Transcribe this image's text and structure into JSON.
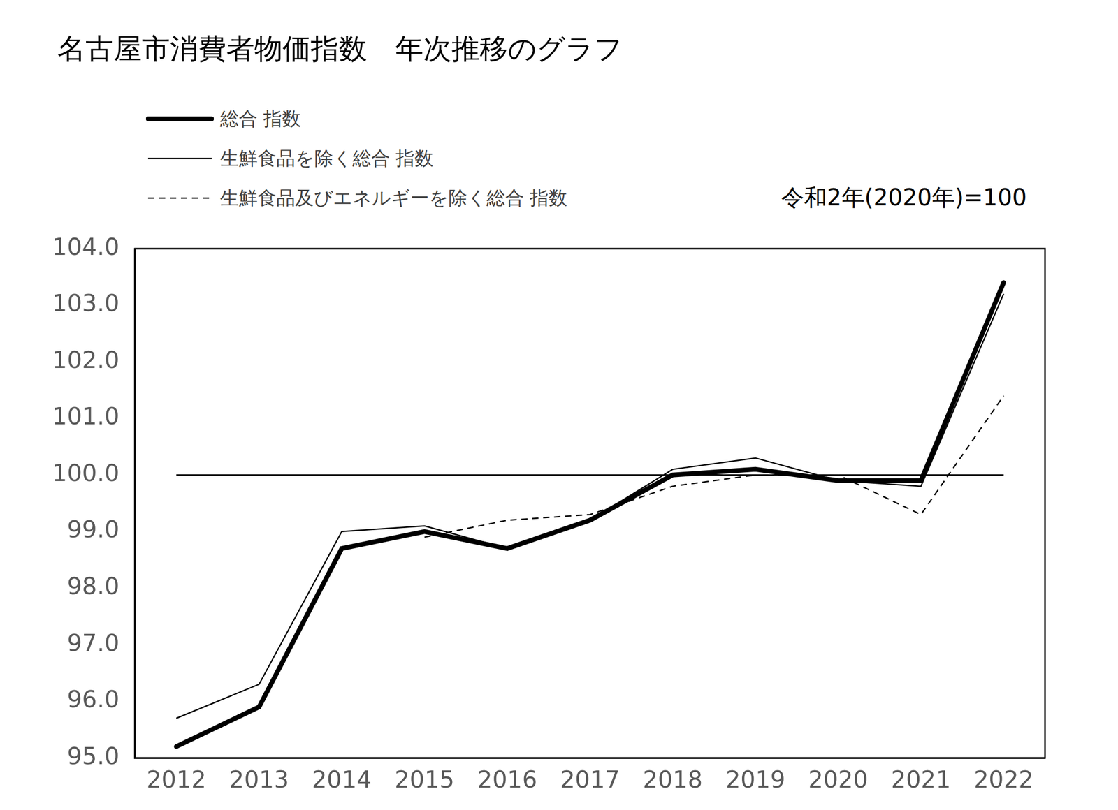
{
  "chart_data": {
    "type": "line",
    "title": "名古屋市消費者物価指数　年次推移のグラフ",
    "annotations": [
      "令和2年(2020年)=100"
    ],
    "categories": [
      "2012",
      "2013",
      "2014",
      "2015",
      "2016",
      "2017",
      "2018",
      "2019",
      "2020",
      "2021",
      "2022"
    ],
    "series": [
      {
        "name": "総合 指数",
        "color": "#000000",
        "line_style": "solid",
        "values": [
          95.2,
          95.9,
          98.7,
          99.0,
          98.7,
          99.2,
          100.0,
          100.1,
          99.9,
          99.9,
          103.4
        ]
      },
      {
        "name": "生鮮食品を除く総合 指数",
        "color": "#000000",
        "line_style": "solid",
        "values": [
          95.7,
          96.3,
          99.0,
          99.1,
          98.7,
          99.2,
          100.1,
          100.3,
          99.9,
          99.8,
          103.2
        ]
      },
      {
        "name": "生鮮食品及びエネルギーを除く総合 指数",
        "color": "#000000",
        "line_style": "dashed",
        "values": [
          null,
          null,
          null,
          98.9,
          99.2,
          99.3,
          99.8,
          100.0,
          100.0,
          99.3,
          101.4
        ]
      },
      {
        "color": "#000000",
        "line_style": "solid",
        "values": [
          100,
          100,
          100,
          100,
          100,
          100,
          100,
          100,
          100,
          100,
          100
        ]
      }
    ],
    "ylim": [
      95,
      104
    ],
    "yticks": [
      {
        "value": 95,
        "label": "95.0"
      },
      {
        "value": 96,
        "label": "96.0"
      },
      {
        "value": 97,
        "label": "97.0"
      },
      {
        "value": 98,
        "label": "98.0"
      },
      {
        "value": 99,
        "label": "99.0"
      },
      {
        "value": 100,
        "label": "100.0"
      },
      {
        "value": 101,
        "label": "101.0"
      },
      {
        "value": 102,
        "label": "102.0"
      },
      {
        "value": 103,
        "label": "103.0"
      },
      {
        "value": 104,
        "label": "104.0"
      }
    ],
    "grid": false,
    "legend": "top-left"
  }
}
